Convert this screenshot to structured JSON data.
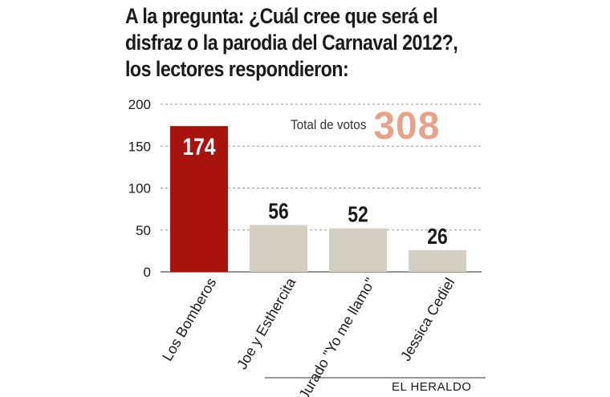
{
  "title_lines": [
    "A la pregunta: ¿Cuál cree que será el",
    "disfraz o la parodia del Carnaval 2012?,",
    "los lectores respondieron:"
  ],
  "total": {
    "label": "Total de votos",
    "value": "308"
  },
  "credit": "EL HERALDO",
  "colors": {
    "highlight": "#a8130e",
    "bar": "#d3cfc3",
    "total": "#e8a287"
  },
  "chart_data": {
    "type": "bar",
    "categories": [
      "Los Bomberos",
      "Joe y Esthercita",
      "Jurado \"Yo me llamo\"",
      "Jessica Cediel"
    ],
    "values": [
      174,
      56,
      52,
      26
    ],
    "value_labels": [
      "174",
      "56",
      "52",
      "26"
    ],
    "highlight_index": 0,
    "ylim": [
      0,
      200
    ],
    "yticks": [
      0,
      50,
      100,
      150,
      200
    ],
    "grid": true,
    "title": "A la pregunta: ¿Cuál cree que será el disfraz o la parodia del Carnaval 2012?, los lectores respondieron:",
    "xlabel": "",
    "ylabel": ""
  }
}
